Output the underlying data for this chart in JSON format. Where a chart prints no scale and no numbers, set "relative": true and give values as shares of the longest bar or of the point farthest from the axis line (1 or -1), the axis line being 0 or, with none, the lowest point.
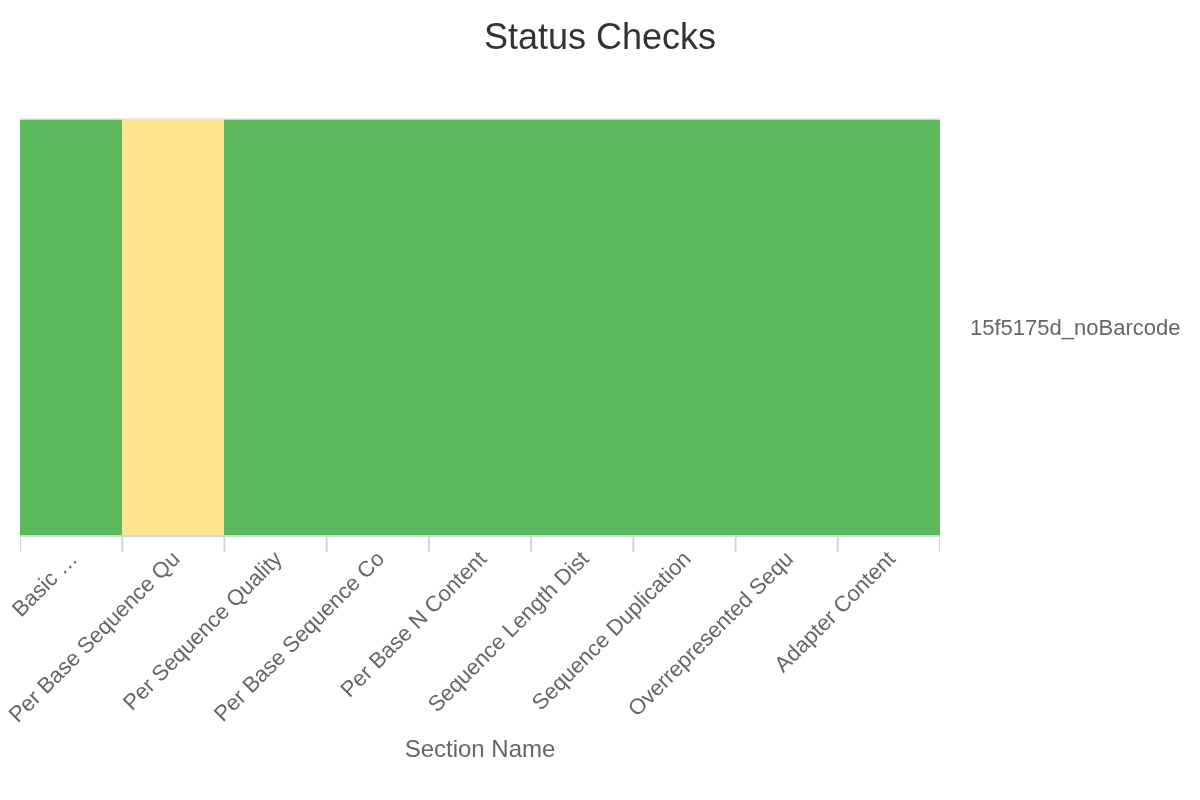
{
  "chart_data": {
    "type": "bar",
    "title": "Status Checks",
    "xlabel": "Section Name",
    "categories": [
      "Basic …",
      "Per Base Sequence Qu",
      "Per Sequence Quality",
      "Per Base Sequence Co",
      "Per Base N Content",
      "Sequence Length Dist",
      "Sequence Duplication",
      "Overrepresented Sequ",
      "Adapter Content"
    ],
    "relative": true,
    "series": [
      {
        "name": "15f5175d_noBarcode",
        "values": [
          1,
          1,
          1,
          1,
          1,
          1,
          1,
          1,
          1
        ],
        "colors": [
          "#5cb85c",
          "#fee391",
          "#5cb85c",
          "#5cb85c",
          "#5cb85c",
          "#5cb85c",
          "#5cb85c",
          "#5cb85c",
          "#5cb85c"
        ]
      }
    ]
  }
}
